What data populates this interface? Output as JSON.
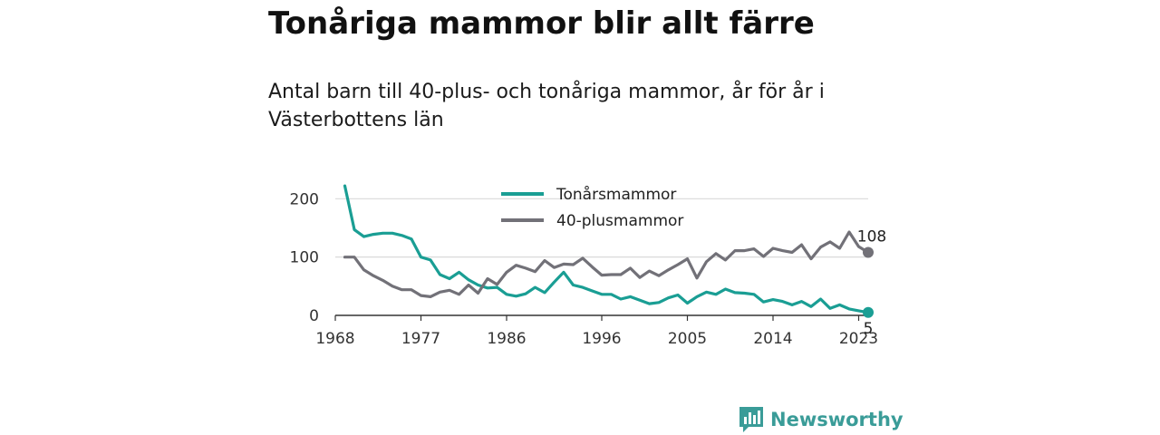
{
  "title": "Tonåriga mammor blir allt färre",
  "subtitle": "Antal barn till 40-plus- och tonåriga mammor, år för år i Västerbottens län",
  "brand": {
    "name": "Newsworthy",
    "logo_icon": "bar-chart-bubble-icon",
    "color": "#3a9c98"
  },
  "chart_data": {
    "type": "line",
    "title": "Tonåriga mammor blir allt färre",
    "subtitle": "Antal barn till 40-plus- och tonåriga mammor, år för år i Västerbottens län",
    "xlabel": "",
    "ylabel": "",
    "xlim": [
      1968,
      2024
    ],
    "ylim": [
      0,
      230
    ],
    "x_ticks": [
      1968,
      1977,
      1986,
      1996,
      2005,
      2014,
      2023
    ],
    "y_ticks": [
      0,
      100,
      200
    ],
    "grid": "horizontal",
    "legend_position": "top-center",
    "x": [
      1969,
      1970,
      1971,
      1972,
      1973,
      1974,
      1975,
      1976,
      1977,
      1978,
      1979,
      1980,
      1981,
      1982,
      1983,
      1984,
      1985,
      1986,
      1987,
      1988,
      1989,
      1990,
      1991,
      1992,
      1993,
      1994,
      1995,
      1996,
      1997,
      1998,
      1999,
      2000,
      2001,
      2002,
      2003,
      2004,
      2005,
      2006,
      2007,
      2008,
      2009,
      2010,
      2011,
      2012,
      2013,
      2014,
      2015,
      2016,
      2017,
      2018,
      2019,
      2020,
      2021,
      2022,
      2023,
      2024
    ],
    "series": [
      {
        "name": "Tonårsmammor",
        "color": "#1a9e94",
        "end_label": "5",
        "values": [
          222,
          147,
          135,
          139,
          141,
          141,
          137,
          131,
          100,
          95,
          70,
          63,
          74,
          61,
          52,
          47,
          48,
          36,
          33,
          37,
          48,
          39,
          57,
          74,
          52,
          48,
          42,
          36,
          36,
          28,
          32,
          26,
          20,
          22,
          30,
          35,
          21,
          32,
          40,
          36,
          45,
          39,
          38,
          36,
          23,
          27,
          24,
          18,
          24,
          15,
          28,
          12,
          18,
          11,
          8,
          5
        ]
      },
      {
        "name": "40-plusmammor",
        "color": "#727178",
        "end_label": "108",
        "values": [
          100,
          100,
          78,
          68,
          60,
          50,
          44,
          44,
          34,
          32,
          40,
          43,
          36,
          52,
          38,
          63,
          53,
          74,
          86,
          81,
          75,
          94,
          82,
          88,
          87,
          98,
          83,
          69,
          70,
          70,
          81,
          65,
          76,
          68,
          78,
          87,
          97,
          64,
          92,
          106,
          95,
          111,
          111,
          114,
          101,
          115,
          111,
          108,
          121,
          97,
          117,
          126,
          115,
          143,
          118,
          108
        ]
      }
    ]
  }
}
